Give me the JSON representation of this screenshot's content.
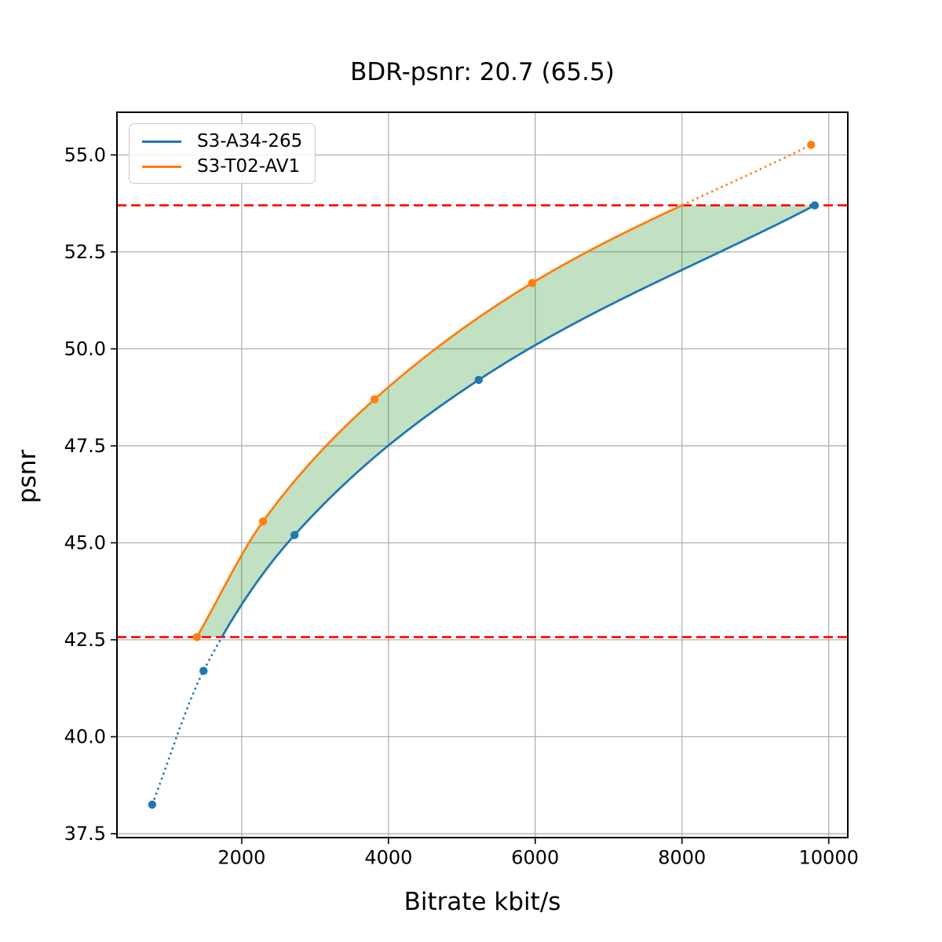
{
  "chart_data": {
    "type": "line",
    "title": "BDR-psnr: 20.7 (65.5)",
    "xlabel": "Bitrate kbit/s",
    "ylabel": "psnr",
    "xlim": [
      300,
      10260
    ],
    "ylim": [
      37.4,
      56.1
    ],
    "grid": true,
    "grid_color": "#b0b0b0",
    "legend_position": "upper-left",
    "xticks": [
      {
        "value": 2000,
        "label": "2000"
      },
      {
        "value": 4000,
        "label": "4000"
      },
      {
        "value": 6000,
        "label": "6000"
      },
      {
        "value": 8000,
        "label": "8000"
      },
      {
        "value": 10000,
        "label": "10000"
      }
    ],
    "yticks": [
      {
        "value": 37.5,
        "label": "37.5"
      },
      {
        "value": 40.0,
        "label": "40.0"
      },
      {
        "value": 42.5,
        "label": "42.5"
      },
      {
        "value": 45.0,
        "label": "45.0"
      },
      {
        "value": 47.5,
        "label": "47.5"
      },
      {
        "value": 50.0,
        "label": "50.0"
      },
      {
        "value": 52.5,
        "label": "52.5"
      },
      {
        "value": 55.0,
        "label": "55.0"
      }
    ],
    "series": [
      {
        "name": "S3-A34-265",
        "color": "#1f77b4",
        "marker": "circle",
        "x": [
          780,
          1480,
          2720,
          5230,
          9810
        ],
        "y": [
          38.25,
          41.7,
          45.2,
          49.2,
          53.7
        ]
      },
      {
        "name": "S3-T02-AV1",
        "color": "#ff7f0e",
        "marker": "circle",
        "x": [
          1390,
          2290,
          3810,
          5960,
          9760
        ],
        "y": [
          42.57,
          45.55,
          48.7,
          51.7,
          55.26
        ]
      }
    ],
    "reference_lines": [
      {
        "y": 42.57,
        "color": "#ff0000",
        "style": "dashed"
      },
      {
        "y": 53.7,
        "color": "#ff0000",
        "style": "dashed"
      }
    ],
    "shaded_region": {
      "color": "#008000",
      "alpha": 0.24,
      "y_min": 42.57,
      "y_max": 53.7
    }
  }
}
